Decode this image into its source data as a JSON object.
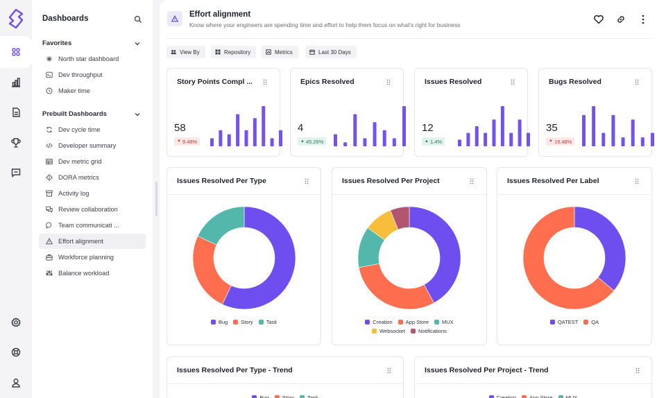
{
  "sidebar": {
    "title": "Dashboards",
    "favorites_label": "Favorites",
    "favorites": [
      {
        "label": "North star dashboard",
        "icon": "sparkle-icon"
      },
      {
        "label": "Dev throughput",
        "icon": "terminal-icon"
      },
      {
        "label": "Maker time",
        "icon": "clock-icon"
      }
    ],
    "prebuilt_label": "Prebuilt Dashboards",
    "prebuilt": [
      {
        "label": "Dev cycle time",
        "icon": "cycle-icon"
      },
      {
        "label": "Developer summary",
        "icon": "code-icon"
      },
      {
        "label": "Dev metric grid",
        "icon": "grid-icon"
      },
      {
        "label": "DORA metrics",
        "icon": "dora-icon"
      },
      {
        "label": "Activity log",
        "icon": "archive-icon"
      },
      {
        "label": "Review collaboration",
        "icon": "chat-bubbles-icon"
      },
      {
        "label": "Team communicati ...",
        "icon": "message-icon"
      },
      {
        "label": "Effort alignment",
        "icon": "warning-icon"
      },
      {
        "label": "Workforce planning",
        "icon": "briefcase-icon"
      },
      {
        "label": "Balance workload",
        "icon": "sliders-icon"
      }
    ],
    "active_item": "Effort alignment"
  },
  "header": {
    "title": "Effort alignment",
    "subtitle": "Know where your engineers are spending time and effort to help them focus on what's right for business"
  },
  "filters": [
    "View By",
    "Repository",
    "Metrics",
    "Last 30 Days"
  ],
  "stats": [
    {
      "title": "Story Points Compl ...",
      "value": "58",
      "change": "9.48%",
      "direction": "down",
      "bars": [
        2,
        4,
        3,
        8,
        4,
        7,
        10,
        2,
        4
      ]
    },
    {
      "title": "Epics Resolved",
      "value": "4",
      "change": "45.26%",
      "direction": "up",
      "bars": [
        3,
        1,
        8,
        2,
        6,
        4,
        2,
        10
      ]
    },
    {
      "title": "Issues Resolved",
      "value": "12",
      "change": "1.4%",
      "direction": "up",
      "bars": [
        1,
        2,
        3,
        2,
        4,
        6,
        2,
        4,
        2
      ]
    },
    {
      "title": "Bugs Resolved",
      "value": "35",
      "change": "19.48%",
      "direction": "down",
      "bars": [
        7,
        9,
        3,
        7,
        2,
        6,
        2,
        3
      ]
    }
  ],
  "accent": "#7352ee",
  "chart_data": [
    {
      "type": "pie",
      "title": "Issues Resolved Per Type",
      "categories": [
        "Bug",
        "Story",
        "Task"
      ],
      "values": [
        57,
        25,
        18
      ],
      "colors": [
        "#6e4eef",
        "#ff6f4f",
        "#53b8ab"
      ]
    },
    {
      "type": "pie",
      "title": "Issues Resolved Per Project",
      "categories": [
        "Creation",
        "App Store",
        "MUX",
        "Websocket",
        "Notifications"
      ],
      "slice_order": [
        "Creation",
        "App Store",
        "MUX",
        "Websocket",
        "Notifications"
      ],
      "values": [
        42,
        30,
        13,
        9,
        6
      ],
      "colors": [
        "#6e4eef",
        "#ff6f4f",
        "#53b8ab",
        "#f8bd3a",
        "#b35570"
      ]
    },
    {
      "type": "pie",
      "title": "Issues Resolved Per Label",
      "categories": [
        "QATEST",
        "QA"
      ],
      "values": [
        36,
        64
      ],
      "colors": [
        "#6e4eef",
        "#ff6f4f"
      ]
    },
    {
      "type": "line",
      "title": "Issues Resolved Per Type - Trend",
      "series": [
        {
          "name": "Bug"
        },
        {
          "name": "Story"
        },
        {
          "name": "Task"
        }
      ]
    },
    {
      "type": "line",
      "title": "Issues Resolved Per Project - Trend",
      "series": [
        {
          "name": "Creation"
        },
        {
          "name": "App Store"
        },
        {
          "name": "MUX"
        }
      ]
    }
  ]
}
